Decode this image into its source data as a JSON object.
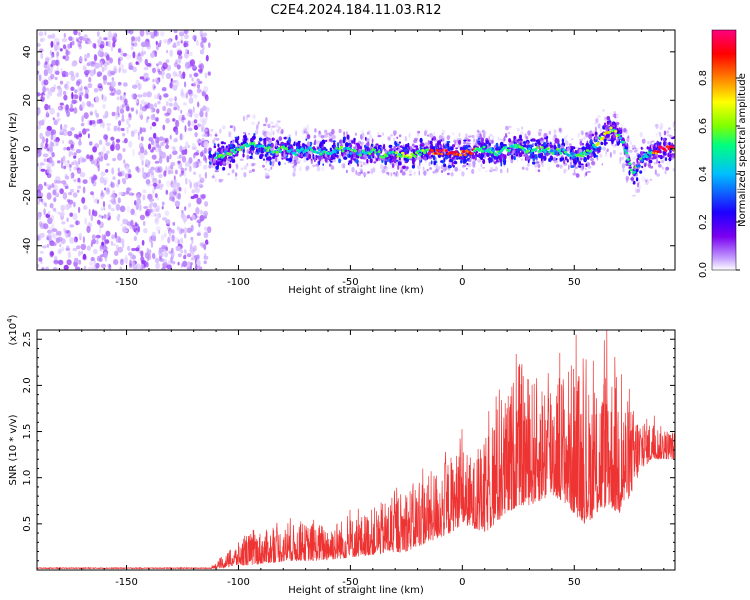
{
  "title": "C2E4.2024.184.11.03.R12",
  "chart_data": [
    {
      "type": "heatmap",
      "xlabel": "Height of straight line (km)",
      "ylabel": "Frequency (Hz)",
      "xlim": [
        -190,
        95
      ],
      "ylim": [
        -50,
        49
      ],
      "xticks": [
        -150,
        -100,
        -50,
        0,
        50
      ],
      "yticks": [
        -40,
        -20,
        0,
        20,
        40
      ],
      "colorbar": {
        "label": "Normalized spectral amplitude",
        "range": [
          0,
          1
        ],
        "ticks": [
          0.0,
          0.2,
          0.4,
          0.6,
          0.8
        ],
        "colormap": [
          "#ffffff",
          "#c29cff",
          "#7a00f0",
          "#1e00ff",
          "#00bfff",
          "#00ff7f",
          "#7fff00",
          "#ffff00",
          "#ff8000",
          "#ff0000",
          "#ff0080"
        ]
      },
      "ridge_center": [
        [
          -113,
          -4
        ],
        [
          -105,
          -2
        ],
        [
          -100,
          0
        ],
        [
          -95,
          2
        ],
        [
          -90,
          1
        ],
        [
          -85,
          -1
        ],
        [
          -80,
          0
        ],
        [
          -75,
          -2
        ],
        [
          -70,
          0
        ],
        [
          -65,
          -1
        ],
        [
          -60,
          -2
        ],
        [
          -55,
          0
        ],
        [
          -50,
          -1
        ],
        [
          -45,
          -2
        ],
        [
          -40,
          -1
        ],
        [
          -35,
          -3
        ],
        [
          -30,
          -2
        ],
        [
          -25,
          -3
        ],
        [
          -20,
          -2
        ],
        [
          -15,
          -1
        ],
        [
          -10,
          -1
        ],
        [
          -5,
          -2
        ],
        [
          0,
          -2
        ],
        [
          5,
          -1
        ],
        [
          10,
          0
        ],
        [
          15,
          -2
        ],
        [
          20,
          0
        ],
        [
          25,
          1
        ],
        [
          30,
          -1
        ],
        [
          35,
          0
        ],
        [
          40,
          -1
        ],
        [
          45,
          -1
        ],
        [
          50,
          -3
        ],
        [
          55,
          -2
        ],
        [
          60,
          2
        ],
        [
          62,
          4
        ],
        [
          64,
          6
        ],
        [
          66,
          8
        ],
        [
          68,
          7
        ],
        [
          70,
          5
        ],
        [
          72,
          2
        ],
        [
          74,
          -4
        ],
        [
          76,
          -10
        ],
        [
          78,
          -8
        ],
        [
          80,
          -4
        ],
        [
          82,
          -3
        ],
        [
          85,
          -2
        ],
        [
          88,
          0
        ],
        [
          92,
          0
        ],
        [
          95,
          0
        ]
      ],
      "noise_region": [
        -190,
        -113
      ]
    },
    {
      "type": "line",
      "series": [
        {
          "values_description": "SNR envelope per height"
        }
      ],
      "xlabel": "Height of straight line (km)",
      "ylabel": "SNR (10 * v/v)",
      "y_multiplier": "(x10",
      "y_multiplier_exp": "4",
      "y_multiplier_close": ")",
      "xlim": [
        -190,
        95
      ],
      "ylim": [
        0,
        2.6
      ],
      "xticks": [
        -150,
        -100,
        -50,
        0,
        50
      ],
      "yticks": [
        0.5,
        1.0,
        1.5,
        2.0,
        2.5
      ],
      "color": "#ee3333",
      "envelope": [
        [
          -190,
          0.02,
          0.02
        ],
        [
          -112,
          0.02,
          0.04
        ],
        [
          -108,
          0.02,
          0.12
        ],
        [
          -100,
          0.05,
          0.3
        ],
        [
          -95,
          0.05,
          0.4
        ],
        [
          -85,
          0.08,
          0.45
        ],
        [
          -75,
          0.1,
          0.5
        ],
        [
          -65,
          0.1,
          0.5
        ],
        [
          -55,
          0.12,
          0.55
        ],
        [
          -45,
          0.15,
          0.6
        ],
        [
          -35,
          0.18,
          0.75
        ],
        [
          -25,
          0.2,
          0.9
        ],
        [
          -15,
          0.3,
          1.05
        ],
        [
          -5,
          0.4,
          1.25
        ],
        [
          0,
          0.5,
          1.35
        ],
        [
          5,
          0.45,
          1.2
        ],
        [
          10,
          0.4,
          1.4
        ],
        [
          15,
          0.5,
          1.8
        ],
        [
          20,
          0.6,
          1.9
        ],
        [
          25,
          0.7,
          2.3
        ],
        [
          30,
          0.7,
          2.1
        ],
        [
          35,
          0.75,
          2.1
        ],
        [
          40,
          0.8,
          2.25
        ],
        [
          45,
          0.75,
          2.2
        ],
        [
          50,
          0.6,
          2.3
        ],
        [
          55,
          0.5,
          2.0
        ],
        [
          60,
          0.6,
          2.0
        ],
        [
          65,
          0.7,
          2.3
        ],
        [
          70,
          0.6,
          2.1
        ],
        [
          75,
          0.8,
          1.8
        ],
        [
          80,
          1.1,
          1.7
        ],
        [
          85,
          1.2,
          1.6
        ],
        [
          90,
          1.2,
          1.55
        ],
        [
          95,
          1.2,
          1.5
        ]
      ]
    }
  ]
}
